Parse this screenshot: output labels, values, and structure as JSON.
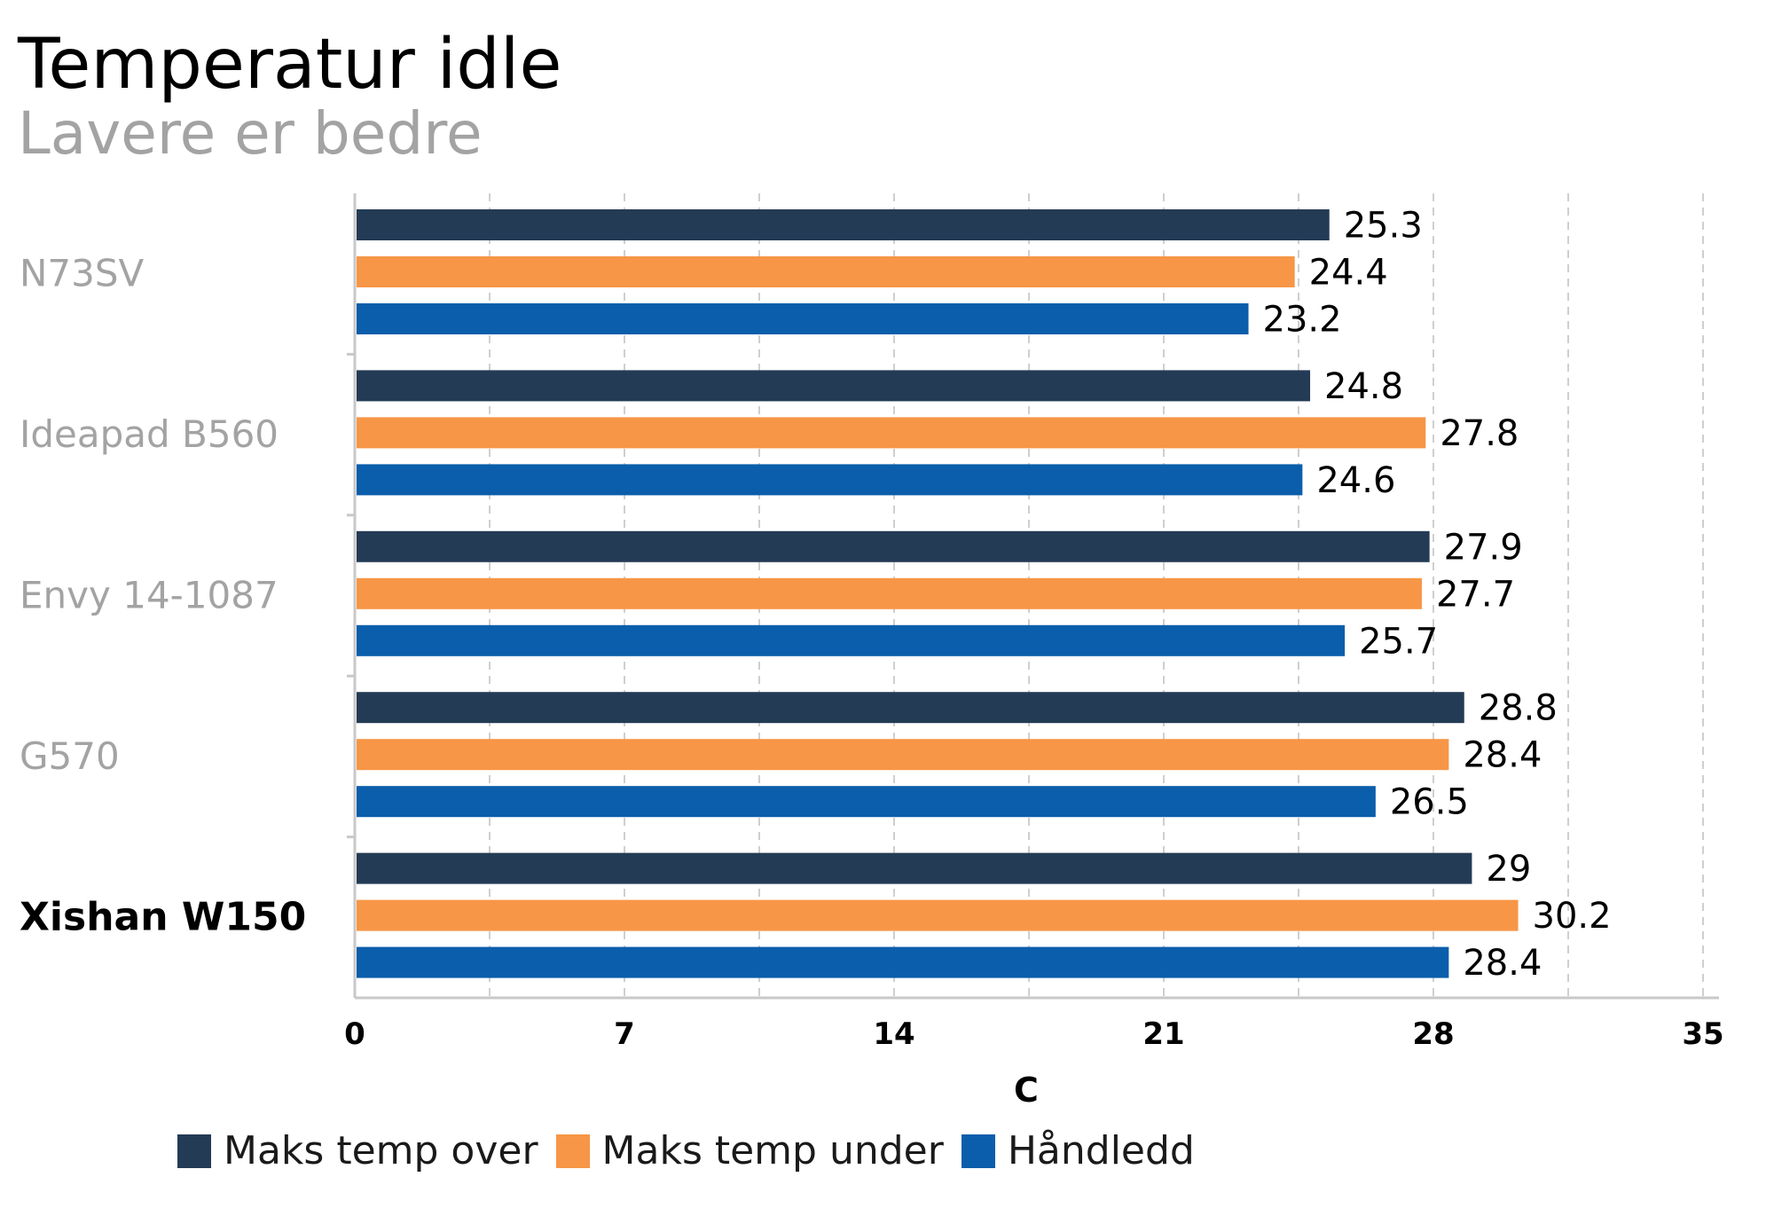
{
  "chart_data": {
    "type": "bar",
    "orientation": "horizontal",
    "title": "Temperatur idle",
    "subtitle": "Lavere er bedre",
    "xlabel": "C",
    "xlim": [
      0,
      35
    ],
    "xticks": [
      0,
      7,
      14,
      21,
      28,
      35
    ],
    "grid": true,
    "legend_position": "bottom",
    "categories": [
      "N73SV",
      "Ideapad B560",
      "Envy 14-1087",
      "G570",
      "Xishan W150"
    ],
    "highlight_category": "Xishan W150",
    "series": [
      {
        "name": "Maks temp over",
        "color": "#243b55",
        "values": [
          25.3,
          24.8,
          27.9,
          28.8,
          29
        ]
      },
      {
        "name": "Maks temp under",
        "color": "#f79646",
        "values": [
          24.4,
          27.8,
          27.7,
          28.4,
          30.2
        ]
      },
      {
        "name": "Håndledd",
        "color": "#0a5eab",
        "values": [
          23.2,
          24.6,
          25.7,
          26.5,
          28.4
        ]
      }
    ]
  }
}
